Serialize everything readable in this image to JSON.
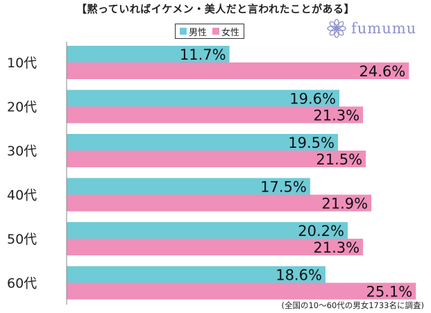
{
  "title": "【黙っていればイケメン・美人だと言われたことがある】",
  "brand": {
    "name": "fumumu",
    "color": "#8c8fca",
    "icon": "flower-logo-icon"
  },
  "note": "(全国の10〜60代の男女1733名に調査)",
  "chart_data": {
    "type": "bar",
    "orientation": "horizontal",
    "categories": [
      "10代",
      "20代",
      "30代",
      "40代",
      "50代",
      "60代"
    ],
    "series": [
      {
        "name": "男性",
        "color": "#6fcbd6",
        "values": [
          11.7,
          19.6,
          19.5,
          17.5,
          20.2,
          18.6
        ]
      },
      {
        "name": "女性",
        "color": "#ef8fba",
        "values": [
          24.6,
          21.3,
          21.5,
          21.9,
          21.3,
          25.1
        ]
      }
    ],
    "value_suffix": "%",
    "legend_position": "top",
    "grid": false
  }
}
